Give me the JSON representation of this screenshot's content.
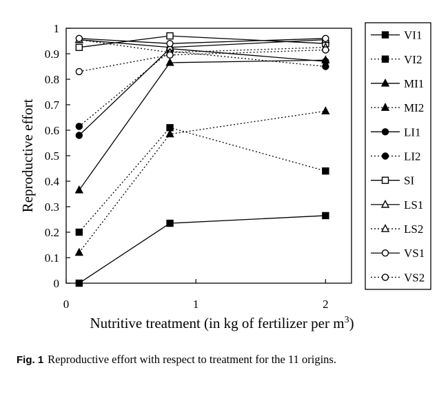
{
  "chart_data": {
    "type": "line",
    "xlabel": "Nutritive treatment (in kg of fertilizer per m",
    "xlabel_sup": "3",
    "xlabel_close": ")",
    "ylabel": "Reproductive effort",
    "xlim": [
      0,
      2.2
    ],
    "ylim": [
      0,
      1
    ],
    "x_ticks": [
      0,
      1,
      2
    ],
    "y_ticks": [
      0,
      0.1,
      0.2,
      0.3,
      0.4,
      0.5,
      0.6,
      0.7,
      0.8,
      0.9,
      1
    ],
    "y_tick_labels": [
      "0",
      "0.1",
      "0.2",
      "0.3",
      "0.4",
      "0.5",
      "0.6",
      "0.7",
      "0.8",
      "0.9",
      "1"
    ],
    "x_tick_labels": [
      "0",
      "1",
      "2"
    ],
    "x": [
      0.1,
      0.8,
      2
    ],
    "grid": false,
    "legend_position": "right",
    "series": [
      {
        "name": "VI1",
        "line": "solid",
        "marker": "square-filled",
        "values": [
          0.0,
          0.235,
          0.265
        ]
      },
      {
        "name": "VI2",
        "line": "dotted",
        "marker": "square-filled",
        "values": [
          0.2,
          0.61,
          0.44
        ]
      },
      {
        "name": "MI1",
        "line": "solid",
        "marker": "triangle-filled",
        "values": [
          0.365,
          0.865,
          0.875
        ]
      },
      {
        "name": "MI2",
        "line": "dotted",
        "marker": "triangle-filled",
        "values": [
          0.12,
          0.585,
          0.675
        ]
      },
      {
        "name": "LI1",
        "line": "solid",
        "marker": "circle-filled",
        "values": [
          0.58,
          0.92,
          0.87
        ]
      },
      {
        "name": "LI2",
        "line": "dotted",
        "marker": "circle-filled",
        "values": [
          0.615,
          0.91,
          0.85
        ]
      },
      {
        "name": "SI",
        "line": "solid",
        "marker": "square-open",
        "values": [
          0.925,
          0.97,
          0.94
        ]
      },
      {
        "name": "LS1",
        "line": "solid",
        "marker": "triangle-open",
        "values": [
          0.955,
          0.925,
          0.955
        ]
      },
      {
        "name": "LS2",
        "line": "dotted",
        "marker": "triangle-open",
        "values": [
          0.955,
          0.905,
          0.925
        ]
      },
      {
        "name": "VS1",
        "line": "solid",
        "marker": "circle-open",
        "values": [
          0.96,
          0.94,
          0.96
        ]
      },
      {
        "name": "VS2",
        "line": "dotted",
        "marker": "circle-open",
        "values": [
          0.83,
          0.895,
          0.915
        ]
      }
    ]
  },
  "caption": {
    "label": "Fig. 1",
    "text": "Reproductive effort with respect to treatment for the 11 origins."
  }
}
